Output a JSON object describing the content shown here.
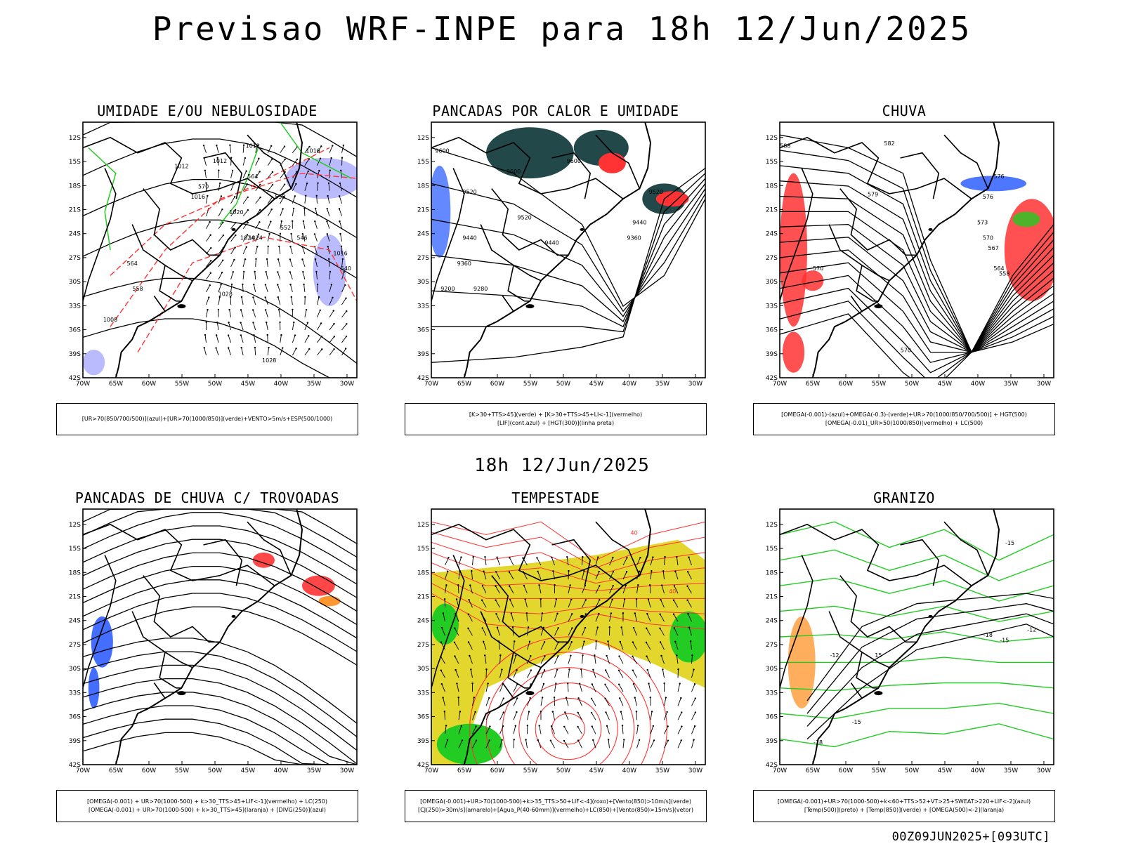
{
  "title": "Previsao WRF-INPE  para 18h 12/Jun/2025",
  "mid_title": "18h 12/Jun/2025",
  "footer": "00Z09JUN2025+[093UTC]",
  "axes": {
    "lat_labels": [
      "12S",
      "15S",
      "18S",
      "21S",
      "24S",
      "27S",
      "30S",
      "33S",
      "36S",
      "39S",
      "42S"
    ],
    "lon_labels": [
      "70W",
      "65W",
      "60W",
      "55W",
      "50W",
      "45W",
      "40W",
      "35W",
      "30W"
    ]
  },
  "colors": {
    "frame": "#000000",
    "red": "#ff3333",
    "green": "#22cc22",
    "blue": "#2255ff",
    "lavender": "#b3b3ff",
    "dark_teal": "#23484a",
    "yellow": "#e3d62c",
    "orange": "#ff8c1a"
  },
  "panels": [
    {
      "title": "UMIDADE E/OU NEBULOSIDADE",
      "legend": [
        "[UR>70(850/700/500)](azul)+[UR>70(1000/850)](verde)+VENTO>5m/s+ESP(500/1000)"
      ],
      "labels": [
        "1012",
        "1012",
        "1012",
        "1016",
        "1016",
        "1020",
        "1024",
        "1024",
        "1028",
        "1016",
        "1008",
        "1028",
        "570",
        "564",
        "558",
        "552",
        "546",
        "540",
        "564",
        "558"
      ]
    },
    {
      "title": "PANCADAS POR CALOR E UMIDADE",
      "legend": [
        "[K>30+TTS>45](verde) + [K>30+TTS>45+LI<-1](vermelho)",
        "[LIF](cont.azul) + [HGT(300)](linha preta)"
      ],
      "labels": [
        "9600",
        "9600",
        "9600",
        "9520",
        "9520",
        "9520",
        "9440",
        "9440",
        "9440",
        "9360",
        "9360",
        "9280",
        "9200"
      ]
    },
    {
      "title": "CHUVA",
      "legend": [
        "[OMEGA(-0.001)-(azul)+OMEGA(-0.3)-(verde)+UR>70(1000/850/700/500)] + HGT(500)",
        "[OMEGA(-0.01)_UR>50(1000/850)(vermelho) + LC(500)"
      ],
      "labels": [
        "588",
        "582",
        "579",
        "576",
        "576",
        "573",
        "570",
        "567",
        "564",
        "558",
        "570",
        "570"
      ]
    },
    {
      "title": "PANCADAS DE CHUVA C/ TROVOADAS",
      "legend": [
        "[OMEGA(-0.001) + UR>70(1000-500) + k>30_TTS>45+LIF<-1](vermelho) + LC(250)",
        "[OMEGA(-0.001) + UR>70(1000-500) + k>30_TTS>45](laranja) + [DIVG(250)](azul)"
      ],
      "labels": []
    },
    {
      "title": "TEMPESTADE",
      "legend": [
        "[OMEGA(-0.001)+UR>70(1000-500)+k>35_TTS>50+LIF<-4](roxo)+[Vento(850)>10m/s](verde)",
        "[CJ(250)>30m/s](amarelo)+[Agua_P(40-60mm)](vermelho)+LC(850)+[Vento(850)>15m/s](vetor)"
      ],
      "labels": [
        "40",
        "40"
      ]
    },
    {
      "title": "GRANIZO",
      "legend": [
        "[OMEGA(-0.001)+UR>70(1000-500)+k<60+TTS>52+VT>25+SWEAT>220+LIF<-2](azul)",
        "[Temp(500)](preto) + [Temp(850)](verde) + [OMEGA(500)<-2](laranja)"
      ],
      "labels": [
        "-15",
        "-12",
        "-18",
        "-15",
        "-15",
        "-18",
        "15",
        "-12"
      ]
    }
  ]
}
